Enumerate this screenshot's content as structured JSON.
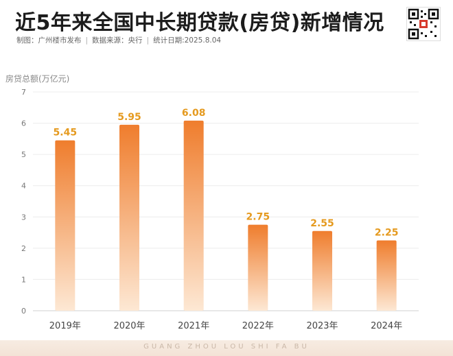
{
  "header": {
    "title": "近5年来全国中长期贷款(房贷)新增情况",
    "maker": "制图：广州楼市发布",
    "source": "数据来源：央行",
    "date": "统计日期:2025.8.04"
  },
  "footer": {
    "text": "GUANG ZHOU LOU SHI FA BU"
  },
  "colors": {
    "bar_top": "#ef7d2d",
    "bar_bottom": "#fde8d4",
    "value_label": "#e59a1f"
  },
  "chart_data": {
    "type": "bar",
    "ylabel": "房贷总额(万亿元)",
    "xlabel": "",
    "categories": [
      "2019年",
      "2020年",
      "2021年",
      "2022年",
      "2023年",
      "2024年"
    ],
    "values": [
      5.45,
      5.95,
      6.08,
      2.75,
      2.55,
      2.25
    ],
    "value_labels": [
      "5.45",
      "5.95",
      "6.08",
      "2.75",
      "2.55",
      "2.25"
    ],
    "yticks": [
      "0",
      "1",
      "2",
      "3",
      "4",
      "5",
      "6",
      "7"
    ],
    "ylim": [
      0,
      7
    ],
    "grid": true,
    "legend": "none"
  }
}
